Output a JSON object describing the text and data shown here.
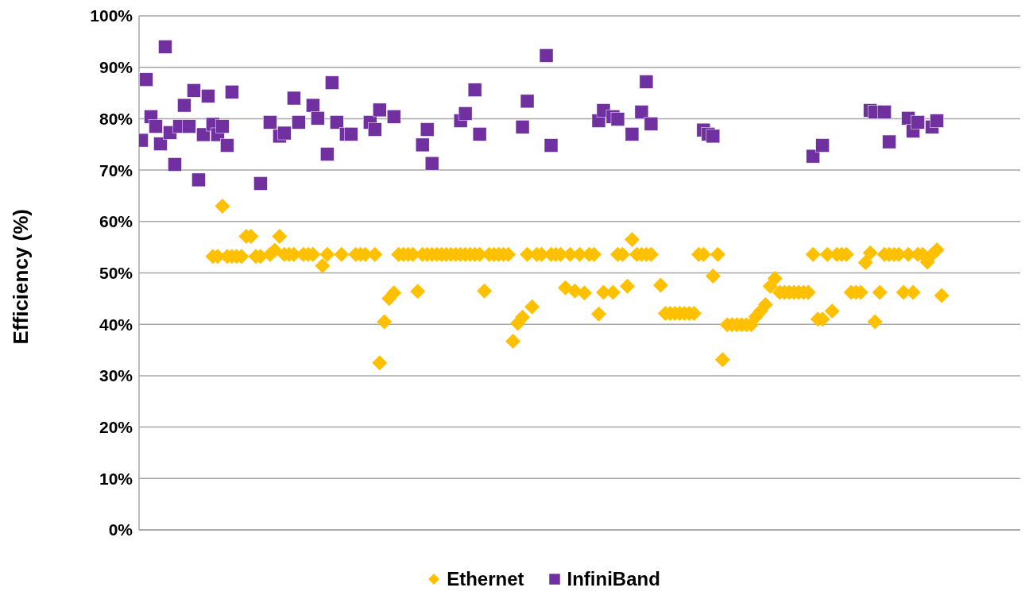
{
  "chart_data": {
    "type": "scatter",
    "ylabel": "Efficiency (%)",
    "categories": [
      null,
      null,
      null,
      null,
      null,
      null,
      null,
      null,
      null,
      null,
      null,
      null,
      null,
      null,
      null,
      null,
      null,
      null,
      null,
      null,
      null,
      null,
      null,
      null,
      null,
      null,
      null,
      null,
      null,
      null,
      null,
      null,
      null,
      null,
      null,
      null,
      null,
      null,
      null,
      null,
      null,
      null,
      null,
      null,
      null,
      null,
      null,
      null,
      null,
      null,
      null,
      null,
      null,
      null,
      null,
      null,
      null,
      null,
      null,
      null,
      null,
      null,
      null,
      null,
      null,
      null,
      null,
      null,
      null,
      null,
      null,
      null,
      null,
      null,
      null,
      null,
      null,
      null,
      null,
      null,
      null,
      null,
      null,
      null,
      null,
      null,
      null,
      null,
      null,
      null,
      null,
      null,
      null,
      null,
      null,
      null,
      null,
      null,
      null,
      null,
      null,
      null,
      null,
      null,
      null,
      null,
      null,
      null,
      null,
      null,
      null,
      null,
      null,
      null,
      null,
      null,
      null,
      null,
      null,
      null,
      null,
      null,
      null,
      null,
      null,
      null,
      null,
      null,
      null,
      null,
      null,
      null,
      null,
      null,
      null,
      null,
      null,
      null,
      null,
      null,
      null,
      null,
      null,
      null,
      null,
      null,
      null,
      null,
      null,
      null,
      null,
      null,
      null,
      null,
      null,
      null,
      null,
      null,
      null,
      null,
      null,
      null,
      null,
      null,
      null,
      null,
      null,
      null,
      null,
      null,
      null,
      null,
      null,
      null,
      null,
      null,
      null,
      null,
      null,
      null,
      null,
      null,
      null,
      null,
      null
    ],
    "series": [
      {
        "name": "Ethernet",
        "color": "#ffc000",
        "marker": "diamond",
        "values": [
          null,
          null,
          null,
          null,
          null,
          null,
          null,
          null,
          null,
          null,
          null,
          null,
          null,
          null,
          null,
          53.2,
          53.2,
          63.0,
          53.2,
          53.2,
          53.2,
          53.2,
          57.1,
          57.1,
          53.2,
          53.2,
          null,
          53.6,
          54.4,
          57.1,
          53.6,
          53.6,
          53.6,
          null,
          53.6,
          53.6,
          53.6,
          null,
          51.4,
          53.6,
          null,
          null,
          53.6,
          null,
          null,
          53.6,
          53.6,
          53.6,
          null,
          53.6,
          32.5,
          40.5,
          45.0,
          46.1,
          53.6,
          53.6,
          53.6,
          53.6,
          46.4,
          53.6,
          53.6,
          53.6,
          53.6,
          53.6,
          53.6,
          53.6,
          53.6,
          53.6,
          53.6,
          53.6,
          53.6,
          53.6,
          46.5,
          53.6,
          53.6,
          53.6,
          53.6,
          53.6,
          36.7,
          40.2,
          41.4,
          53.6,
          43.4,
          53.6,
          53.6,
          null,
          53.6,
          53.6,
          53.6,
          47.1,
          53.6,
          46.5,
          53.6,
          46.1,
          53.6,
          53.6,
          42.0,
          46.2,
          null,
          46.2,
          53.6,
          53.6,
          47.4,
          56.5,
          53.6,
          53.6,
          53.6,
          53.6,
          null,
          47.6,
          42.1,
          42.1,
          42.1,
          42.1,
          42.1,
          42.1,
          42.1,
          53.6,
          53.6,
          null,
          49.4,
          53.6,
          33.1,
          39.9,
          39.9,
          39.9,
          39.9,
          39.9,
          39.9,
          41.5,
          42.6,
          43.8,
          47.4,
          48.9,
          46.2,
          46.2,
          46.2,
          46.2,
          46.2,
          46.2,
          46.2,
          53.6,
          41.0,
          41.0,
          53.6,
          42.6,
          53.6,
          53.6,
          53.6,
          46.2,
          46.2,
          46.2,
          52.0,
          53.9,
          40.5,
          46.2,
          53.6,
          53.6,
          53.6,
          53.6,
          46.2,
          53.6,
          46.2,
          53.6,
          53.6,
          52.1,
          53.6,
          54.5,
          45.6,
          null,
          null,
          null,
          null,
          null,
          null,
          null,
          null,
          null,
          null,
          null,
          null,
          null,
          null,
          null,
          null
        ]
      },
      {
        "name": "InfiniBand",
        "color": "#7030a0",
        "marker": "square",
        "values": [
          75.8,
          87.6,
          80.4,
          78.5,
          75.1,
          94.0,
          77.3,
          71.1,
          78.5,
          82.6,
          78.5,
          85.5,
          68.1,
          76.9,
          84.4,
          78.9,
          76.9,
          78.5,
          74.8,
          85.2,
          null,
          null,
          null,
          null,
          null,
          67.4,
          null,
          79.3,
          null,
          76.6,
          77.2,
          null,
          84.0,
          79.3,
          null,
          null,
          82.6,
          80.1,
          null,
          73.1,
          87.0,
          79.3,
          null,
          77.0,
          77.0,
          null,
          null,
          null,
          79.3,
          77.9,
          81.7,
          null,
          null,
          80.4,
          null,
          null,
          null,
          null,
          null,
          74.9,
          77.9,
          71.3,
          null,
          null,
          null,
          null,
          null,
          79.6,
          81.0,
          null,
          85.6,
          77.0,
          null,
          null,
          null,
          null,
          null,
          null,
          null,
          null,
          78.4,
          83.4,
          null,
          null,
          null,
          92.3,
          74.8,
          null,
          null,
          null,
          null,
          null,
          null,
          null,
          null,
          null,
          79.6,
          81.6,
          null,
          80.4,
          79.9,
          null,
          null,
          77.0,
          null,
          81.3,
          87.2,
          79.0,
          null,
          null,
          null,
          null,
          null,
          null,
          null,
          null,
          null,
          null,
          77.8,
          77.0,
          76.6,
          null,
          null,
          null,
          null,
          null,
          null,
          null,
          null,
          null,
          null,
          null,
          null,
          null,
          null,
          null,
          null,
          null,
          null,
          null,
          null,
          72.7,
          null,
          74.8,
          null,
          null,
          null,
          null,
          null,
          null,
          null,
          null,
          null,
          81.6,
          81.3,
          null,
          81.3,
          75.5,
          null,
          null,
          null,
          80.1,
          77.6,
          79.3,
          null,
          null,
          78.4,
          79.6,
          null,
          null,
          null,
          null,
          null,
          null,
          null,
          null,
          null,
          null,
          null,
          null,
          null,
          null,
          null,
          null,
          null
        ]
      }
    ],
    "ylim": [
      0,
      100
    ],
    "yticks": [
      {
        "value": 0,
        "label": "0%"
      },
      {
        "value": 10,
        "label": "10%"
      },
      {
        "value": 20,
        "label": "20%"
      },
      {
        "value": 30,
        "label": "30%"
      },
      {
        "value": 40,
        "label": "40%"
      },
      {
        "value": 50,
        "label": "50%"
      },
      {
        "value": 60,
        "label": "60%"
      },
      {
        "value": 70,
        "label": "70%"
      },
      {
        "value": 80,
        "label": "80%"
      },
      {
        "value": 90,
        "label": "90%"
      },
      {
        "value": 100,
        "label": "100%"
      }
    ],
    "grid": "y",
    "legend": "bottom",
    "tick_labels": "y"
  }
}
